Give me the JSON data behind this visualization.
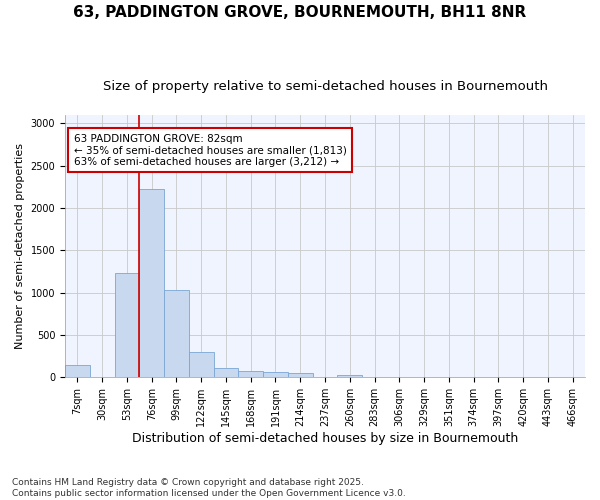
{
  "title_line1": "63, PADDINGTON GROVE, BOURNEMOUTH, BH11 8NR",
  "title_line2": "Size of property relative to semi-detached houses in Bournemouth",
  "xlabel": "Distribution of semi-detached houses by size in Bournemouth",
  "ylabel": "Number of semi-detached properties",
  "footnote1": "Contains HM Land Registry data © Crown copyright and database right 2025.",
  "footnote2": "Contains public sector information licensed under the Open Government Licence v3.0.",
  "categories": [
    "7sqm",
    "30sqm",
    "53sqm",
    "76sqm",
    "99sqm",
    "122sqm",
    "145sqm",
    "168sqm",
    "191sqm",
    "214sqm",
    "237sqm",
    "260sqm",
    "283sqm",
    "306sqm",
    "329sqm",
    "351sqm",
    "374sqm",
    "397sqm",
    "420sqm",
    "443sqm",
    "466sqm"
  ],
  "values": [
    150,
    5,
    1230,
    2230,
    1030,
    300,
    110,
    80,
    60,
    50,
    5,
    25,
    0,
    0,
    0,
    0,
    0,
    0,
    0,
    0,
    0
  ],
  "bar_color": "#c8d8ee",
  "bar_edge_color": "#7aa6d4",
  "grid_color": "#c8c8c8",
  "bg_color": "#f0f4ff",
  "fig_bg_color": "#ffffff",
  "annotation_text": "63 PADDINGTON GROVE: 82sqm\n← 35% of semi-detached houses are smaller (1,813)\n63% of semi-detached houses are larger (3,212) →",
  "annotation_box_color": "#ffffff",
  "annotation_border_color": "#cc0000",
  "red_line_x": 2.5,
  "ylim": [
    0,
    3100
  ],
  "yticks": [
    0,
    500,
    1000,
    1500,
    2000,
    2500,
    3000
  ],
  "title_fontsize": 11,
  "subtitle_fontsize": 9.5,
  "ylabel_fontsize": 8,
  "xlabel_fontsize": 9,
  "tick_fontsize": 7,
  "annotation_fontsize": 7.5,
  "footnote_fontsize": 6.5
}
